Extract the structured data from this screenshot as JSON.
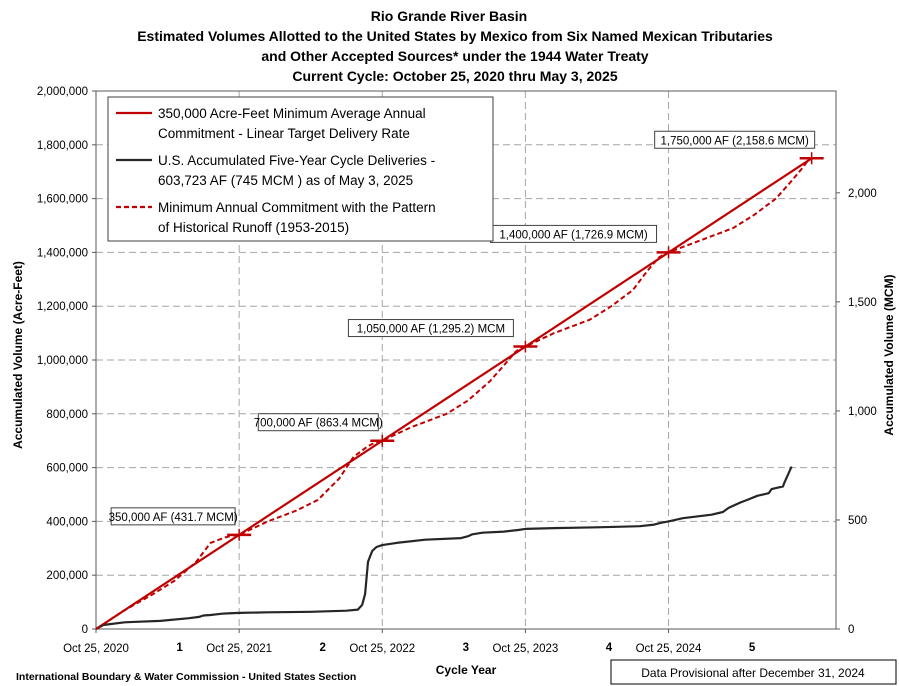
{
  "chart_data": {
    "type": "line",
    "title": [
      "Rio Grande River Basin",
      "Estimated Volumes Allotted to the United States by Mexico from Six Named Mexican Tributaries",
      "and Other Accepted Sources* under the 1944 Water Treaty",
      "Current Cycle: October 25, 2020 thru May 3, 2025"
    ],
    "xlabel": "Cycle Year",
    "ylabel": "Accumulated Volume (Acre-Feet)",
    "y2label": "Accumulated Volume (MCM)",
    "xlim": [
      0,
      5.17
    ],
    "ylim": [
      0,
      2000000
    ],
    "y2lim": [
      0,
      2466.96
    ],
    "grid": true,
    "legend_position": "top-left",
    "x_tick_labels": [
      {
        "x": 0,
        "label": "Oct 25, 2020"
      },
      {
        "x": 1,
        "label": "Oct 25, 2021"
      },
      {
        "x": 2,
        "label": "Oct 25, 2022"
      },
      {
        "x": 3,
        "label": "Oct 25, 2023"
      },
      {
        "x": 4,
        "label": "Oct 25, 2024"
      }
    ],
    "cycle_year_labels": [
      {
        "x": 0.5,
        "label": "1"
      },
      {
        "x": 1.5,
        "label": "2"
      },
      {
        "x": 2.5,
        "label": "3"
      },
      {
        "x": 3.5,
        "label": "4"
      },
      {
        "x": 4.5,
        "label": "5"
      }
    ],
    "y_ticks": [
      {
        "v": 0,
        "label": "0"
      },
      {
        "v": 200000,
        "label": "200,000"
      },
      {
        "v": 400000,
        "label": "400,000"
      },
      {
        "v": 600000,
        "label": "600,000"
      },
      {
        "v": 800000,
        "label": "800,000"
      },
      {
        "v": 1000000,
        "label": "1,000,000"
      },
      {
        "v": 1200000,
        "label": "1,200,000"
      },
      {
        "v": 1400000,
        "label": "1,400,000"
      },
      {
        "v": 1600000,
        "label": "1,600,000"
      },
      {
        "v": 1800000,
        "label": "1,800,000"
      },
      {
        "v": 2000000,
        "label": "2,000,000"
      }
    ],
    "y2_ticks": [
      {
        "v": 0,
        "label": "0"
      },
      {
        "v": 500,
        "label": "500"
      },
      {
        "v": 1000,
        "label": "1,000"
      },
      {
        "v": 1500,
        "label": "1,500"
      },
      {
        "v": 2000,
        "label": "2,000"
      }
    ],
    "series": [
      {
        "name": "350,000 Acre-Feet Minimum Average Annual Commitment - Linear Target Delivery Rate",
        "legend_lines": [
          "350,000 Acre-Feet Minimum Average Annual",
          "Commitment - Linear Target Delivery Rate"
        ],
        "color": "#c00000",
        "style": "solid",
        "x": [
          0,
          5
        ],
        "y": [
          0,
          1750000
        ]
      },
      {
        "name": "U.S. Accumulated Five-Year Cycle Deliveries - 603,723 AF (745 MCM ) as of May 3, 2025",
        "legend_lines": [
          "U.S. Accumulated Five-Year Cycle Deliveries -",
          "603,723 AF (745 MCM ) as of May 3, 2025"
        ],
        "color": "#262626",
        "style": "solid",
        "x": [
          0,
          0.05,
          0.2,
          0.45,
          0.65,
          0.72,
          0.75,
          0.8,
          0.85,
          0.88,
          0.92,
          1.0,
          1.2,
          1.5,
          1.75,
          1.83,
          1.86,
          1.88,
          1.9,
          1.93,
          1.96,
          2.0,
          2.1,
          2.3,
          2.55,
          2.6,
          2.63,
          2.7,
          2.85,
          2.95,
          3.0,
          3.2,
          3.5,
          3.8,
          3.9,
          3.95,
          4.0,
          4.1,
          4.3,
          4.38,
          4.42,
          4.5,
          4.55,
          4.62,
          4.7,
          4.72,
          4.8,
          4.81,
          4.86
        ],
        "y": [
          0,
          15000,
          25000,
          30000,
          40000,
          45000,
          50000,
          52000,
          55000,
          57000,
          58000,
          60000,
          62000,
          64000,
          68000,
          72000,
          90000,
          130000,
          250000,
          290000,
          305000,
          312000,
          320000,
          332000,
          338000,
          345000,
          352000,
          358000,
          362000,
          368000,
          372000,
          375000,
          378000,
          382000,
          388000,
          395000,
          400000,
          412000,
          425000,
          435000,
          450000,
          470000,
          480000,
          495000,
          505000,
          520000,
          530000,
          545000,
          603723
        ]
      },
      {
        "name": "Minimum Annual Commitment with the Pattern of Historical Runoff (1953-2015)",
        "legend_lines": [
          "Minimum Annual Commitment with the Pattern",
          "of Historical Runoff (1953-2015)"
        ],
        "color": "#c00000",
        "style": "dashed",
        "x": [
          0,
          0.2,
          0.4,
          0.55,
          0.7,
          0.8,
          0.9,
          0.96,
          1.0,
          1.2,
          1.4,
          1.55,
          1.7,
          1.8,
          1.9,
          1.96,
          2.0,
          2.2,
          2.45,
          2.6,
          2.75,
          2.85,
          2.93,
          2.98,
          3.0,
          3.2,
          3.45,
          3.6,
          3.75,
          3.85,
          3.93,
          3.98,
          4.0,
          4.2,
          4.45,
          4.6,
          4.75,
          4.85,
          4.93,
          4.98,
          5.0
        ],
        "y": [
          0,
          70000,
          130000,
          180000,
          250000,
          320000,
          340000,
          348000,
          350000,
          400000,
          440000,
          480000,
          560000,
          640000,
          680000,
          695000,
          700000,
          750000,
          800000,
          850000,
          920000,
          980000,
          1030000,
          1048000,
          1050000,
          1100000,
          1150000,
          1200000,
          1260000,
          1330000,
          1380000,
          1398000,
          1400000,
          1440000,
          1490000,
          1540000,
          1600000,
          1660000,
          1710000,
          1745000,
          1750000
        ]
      }
    ],
    "milestones": [
      {
        "x": 1,
        "y": 350000,
        "label": "350,000 AF (431.7 MCM)"
      },
      {
        "x": 2,
        "y": 700000,
        "label": "700,000 AF (863.4 MCM)"
      },
      {
        "x": 3,
        "y": 1050000,
        "label": "1,050,000 AF (1,295.2) MCM"
      },
      {
        "x": 4,
        "y": 1400000,
        "label": "1,400,000  AF (1,726.9 MCM)"
      },
      {
        "x": 5,
        "y": 1750000,
        "label": "1,750,000 AF (2,158.6 MCM)"
      }
    ]
  },
  "footer": {
    "left": "International Boundary & Water Commission - United States Section",
    "right": "Data Provisional after December 31, 2024"
  }
}
